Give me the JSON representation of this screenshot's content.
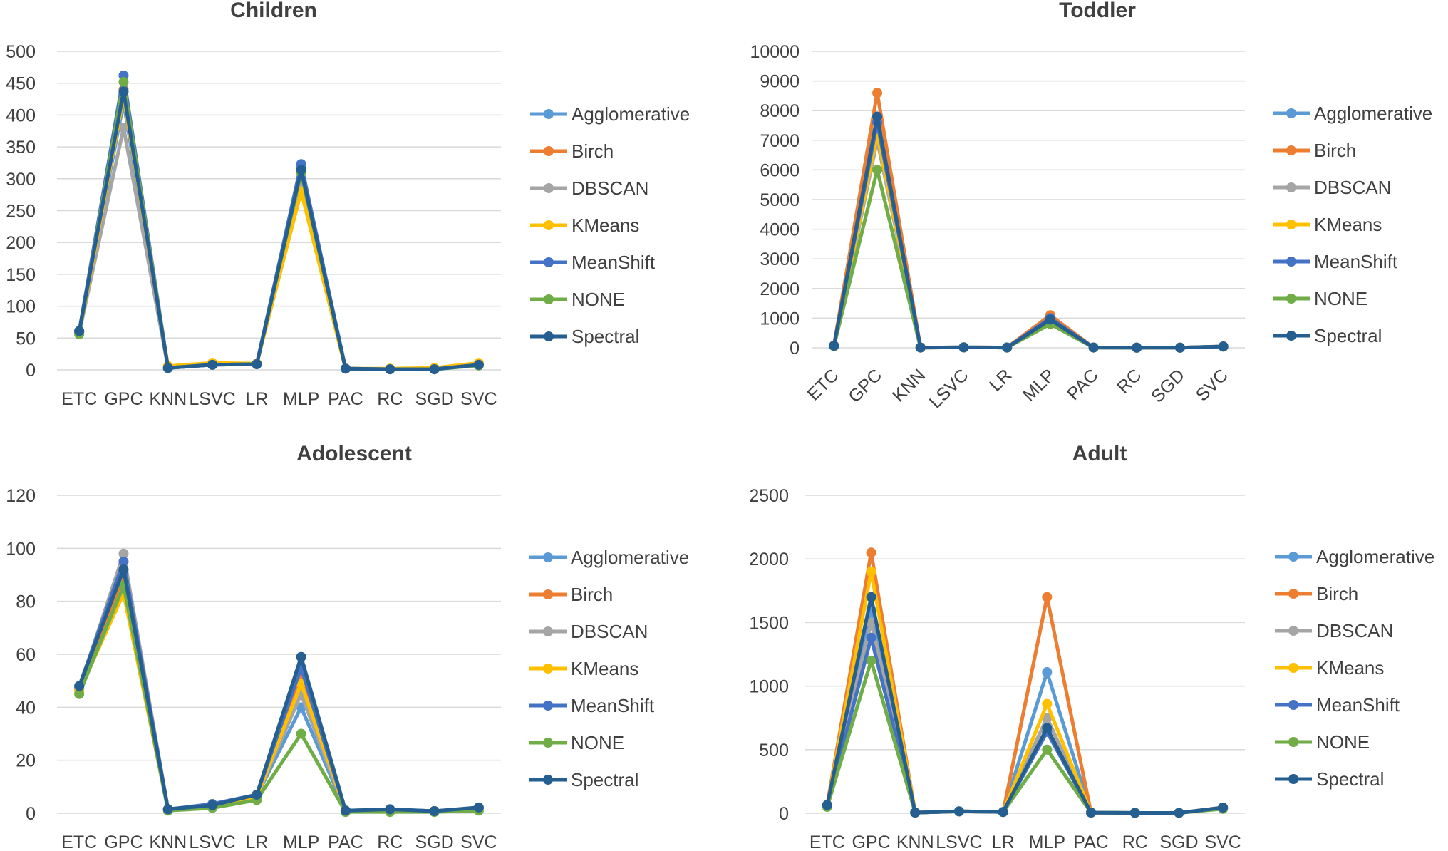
{
  "colors": {
    "Agglomerative": "#5B9BD5",
    "Birch": "#ED7D31",
    "DBSCAN": "#A5A5A5",
    "KMeans": "#FFC000",
    "MeanShift": "#4472C4",
    "NONE": "#70AD47",
    "Spectral": "#255E91"
  },
  "chart_data": [
    {
      "type": "line",
      "title": "Children",
      "categories": [
        "ETC",
        "GPC",
        "KNN",
        "LSVC",
        "LR",
        "MLP",
        "PAC",
        "RC",
        "SGD",
        "SVC"
      ],
      "ylim": [
        0,
        500
      ],
      "yticks": [
        "0",
        "50",
        "100",
        "150",
        "200",
        "250",
        "300",
        "350",
        "400",
        "450",
        "500"
      ],
      "rotate_xticks": false,
      "legend": "right",
      "series": [
        {
          "name": "Agglomerative",
          "values": [
            60,
            420,
            3,
            8,
            9,
            320,
            2,
            1,
            1,
            8
          ]
        },
        {
          "name": "Birch",
          "values": [
            60,
            440,
            4,
            9,
            10,
            310,
            2,
            1,
            2,
            9
          ]
        },
        {
          "name": "DBSCAN",
          "values": [
            58,
            380,
            4,
            8,
            9,
            300,
            2,
            1,
            1,
            8
          ]
        },
        {
          "name": "KMeans",
          "values": [
            57,
            430,
            6,
            11,
            10,
            280,
            2,
            2,
            3,
            11
          ]
        },
        {
          "name": "MeanShift",
          "values": [
            61,
            462,
            3,
            8,
            9,
            323,
            2,
            1,
            1,
            8
          ]
        },
        {
          "name": "NONE",
          "values": [
            56,
            452,
            3,
            8,
            9,
            310,
            2,
            1,
            1,
            7
          ]
        },
        {
          "name": "Spectral",
          "values": [
            61,
            437,
            3,
            8,
            9,
            314,
            2,
            1,
            1,
            8
          ]
        }
      ]
    },
    {
      "type": "line",
      "title": "Toddler",
      "categories": [
        "ETC",
        "GPC",
        "KNN",
        "LSVC",
        "LR",
        "MLP",
        "PAC",
        "RC",
        "SGD",
        "SVC"
      ],
      "ylim": [
        0,
        10000
      ],
      "yticks": [
        "0",
        "1000",
        "2000",
        "3000",
        "4000",
        "5000",
        "6000",
        "7000",
        "8000",
        "9000",
        "10000"
      ],
      "rotate_xticks": true,
      "legend": "right",
      "series": [
        {
          "name": "Agglomerative",
          "values": [
            70,
            7300,
            10,
            15,
            10,
            950,
            10,
            5,
            5,
            40
          ]
        },
        {
          "name": "Birch",
          "values": [
            80,
            8600,
            10,
            15,
            10,
            1100,
            10,
            5,
            5,
            50
          ]
        },
        {
          "name": "DBSCAN",
          "values": [
            60,
            7000,
            10,
            15,
            10,
            900,
            10,
            5,
            5,
            40
          ]
        },
        {
          "name": "KMeans",
          "values": [
            60,
            7200,
            10,
            15,
            10,
            950,
            10,
            5,
            5,
            40
          ]
        },
        {
          "name": "MeanShift",
          "values": [
            70,
            7600,
            10,
            15,
            10,
            1000,
            10,
            5,
            5,
            45
          ]
        },
        {
          "name": "NONE",
          "values": [
            60,
            6000,
            10,
            15,
            10,
            800,
            10,
            5,
            5,
            40
          ]
        },
        {
          "name": "Spectral",
          "values": [
            70,
            7800,
            10,
            15,
            10,
            950,
            10,
            5,
            5,
            45
          ]
        }
      ]
    },
    {
      "type": "line",
      "title": "Adolescent",
      "categories": [
        "ETC",
        "GPC",
        "KNN",
        "LSVC",
        "LR",
        "MLP",
        "PAC",
        "RC",
        "SGD",
        "SVC"
      ],
      "ylim": [
        0,
        120
      ],
      "yticks": [
        "0",
        "20",
        "40",
        "60",
        "80",
        "100",
        "120"
      ],
      "rotate_xticks": false,
      "legend": "right",
      "series": [
        {
          "name": "Agglomerative",
          "values": [
            47,
            90,
            1.5,
            3,
            6.5,
            40,
            1,
            1,
            0.8,
            2
          ]
        },
        {
          "name": "Birch",
          "values": [
            47,
            89,
            1.5,
            3,
            6.5,
            52,
            1,
            1,
            0.8,
            2
          ]
        },
        {
          "name": "DBSCAN",
          "values": [
            47,
            98,
            1.5,
            3,
            6.5,
            45,
            1,
            1,
            0.8,
            2
          ]
        },
        {
          "name": "KMeans",
          "values": [
            46,
            83,
            1.5,
            3,
            6,
            49,
            1,
            1,
            0.8,
            2
          ]
        },
        {
          "name": "MeanShift",
          "values": [
            48,
            95,
            1.5,
            3.5,
            7,
            55,
            1,
            1.5,
            0.8,
            2
          ]
        },
        {
          "name": "NONE",
          "values": [
            45,
            86,
            1,
            2,
            5,
            30,
            0.5,
            0.5,
            0.5,
            1
          ]
        },
        {
          "name": "Spectral",
          "values": [
            48,
            92,
            1.5,
            3,
            7,
            59,
            1,
            1.5,
            0.8,
            2.2
          ]
        }
      ]
    },
    {
      "type": "line",
      "title": "Adult",
      "categories": [
        "ETC",
        "GPC",
        "KNN",
        "LSVC",
        "LR",
        "MLP",
        "PAC",
        "RC",
        "SGD",
        "SVC"
      ],
      "ylim": [
        0,
        2500
      ],
      "yticks": [
        "0",
        "500",
        "1000",
        "1500",
        "2000",
        "2500"
      ],
      "rotate_xticks": false,
      "legend": "right",
      "series": [
        {
          "name": "Agglomerative",
          "values": [
            60,
            1600,
            5,
            15,
            10,
            1110,
            5,
            3,
            3,
            40
          ]
        },
        {
          "name": "Birch",
          "values": [
            65,
            2050,
            5,
            15,
            10,
            1700,
            5,
            3,
            3,
            45
          ]
        },
        {
          "name": "DBSCAN",
          "values": [
            60,
            1500,
            5,
            15,
            10,
            750,
            5,
            3,
            3,
            40
          ]
        },
        {
          "name": "KMeans",
          "values": [
            60,
            1900,
            5,
            15,
            10,
            860,
            5,
            3,
            3,
            40
          ]
        },
        {
          "name": "MeanShift",
          "values": [
            60,
            1380,
            5,
            15,
            10,
            640,
            5,
            3,
            3,
            40
          ]
        },
        {
          "name": "NONE",
          "values": [
            50,
            1200,
            5,
            15,
            10,
            500,
            5,
            3,
            3,
            35
          ]
        },
        {
          "name": "Spectral",
          "values": [
            65,
            1700,
            5,
            15,
            10,
            670,
            5,
            3,
            3,
            45
          ]
        }
      ]
    }
  ]
}
